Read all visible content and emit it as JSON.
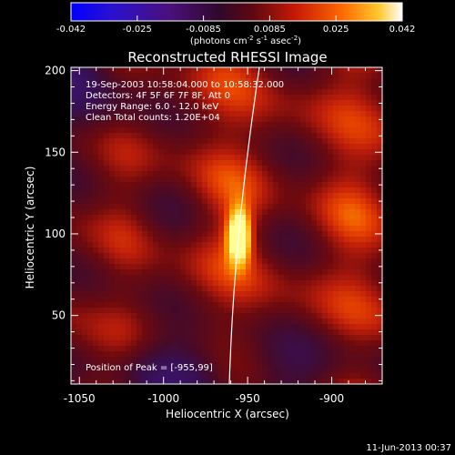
{
  "colorbar": {
    "ticks": [
      "-0.042",
      "-0.025",
      "-0.0085",
      "0.0085",
      "0.025",
      "0.042"
    ],
    "unit_parts": [
      "(photons cm",
      "-2",
      " s",
      "-1",
      " asec",
      "-2",
      ")"
    ]
  },
  "title": "Reconstructed RHESSI Image",
  "info": {
    "line1": "19-Sep-2003 10:58:04.000 to 10:58:32.000",
    "line2": "Detectors: 4F 5F 6F 7F 8F, Att 0",
    "line3": "Energy Range: 6.0 - 12.0 keV",
    "line4": "Clean    Total counts: 1.20E+04"
  },
  "peak_label": "Position of Peak = [-955,99]",
  "axes": {
    "xlabel": "Heliocentric X (arcsec)",
    "ylabel": "Heliocentric Y (arcsec)",
    "xticks": [
      {
        "label": "-1050",
        "value": -1050
      },
      {
        "label": "-1000",
        "value": -1000
      },
      {
        "label": "-950",
        "value": -950
      },
      {
        "label": "-900",
        "value": -900
      }
    ],
    "yticks": [
      {
        "label": "50",
        "value": 50
      },
      {
        "label": "100",
        "value": 100
      },
      {
        "label": "150",
        "value": 150
      },
      {
        "label": "200",
        "value": 200
      }
    ],
    "xlim": [
      -1055,
      -870
    ],
    "ylim": [
      8,
      202
    ]
  },
  "image_data": {
    "peak": {
      "x": -955,
      "y": 99
    },
    "value_range": [
      -0.042,
      0.042
    ],
    "colormap": [
      "#0000ff",
      "#4a0fa0",
      "#3a0a4a",
      "#5a0a14",
      "#b01a0a",
      "#ff3a00",
      "#ffa800",
      "#ffff90"
    ]
  },
  "footer": {
    "timestamp": "11-Jun-2013 00:37"
  }
}
